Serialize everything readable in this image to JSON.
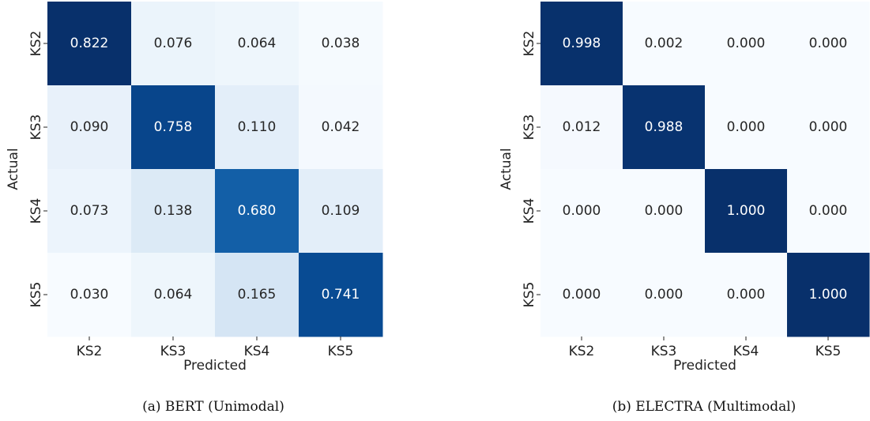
{
  "chart_data": [
    {
      "type": "heatmap",
      "caption": "(a) BERT (Unimodal)",
      "xlabel": "Predicted",
      "ylabel": "Actual",
      "x_categories": [
        "KS2",
        "KS3",
        "KS4",
        "KS5"
      ],
      "y_categories": [
        "KS2",
        "KS3",
        "KS4",
        "KS5"
      ],
      "values": [
        [
          0.822,
          0.076,
          0.064,
          0.038
        ],
        [
          0.09,
          0.758,
          0.11,
          0.042
        ],
        [
          0.073,
          0.138,
          0.68,
          0.109
        ],
        [
          0.03,
          0.064,
          0.165,
          0.741
        ]
      ],
      "value_labels": [
        [
          "0.822",
          "0.076",
          "0.064",
          "0.038"
        ],
        [
          "0.090",
          "0.758",
          "0.110",
          "0.042"
        ],
        [
          "0.073",
          "0.138",
          "0.680",
          "0.109"
        ],
        [
          "0.030",
          "0.064",
          "0.165",
          "0.741"
        ]
      ],
      "colormap": "Blues",
      "vmin": 0.03,
      "vmax": 0.822,
      "colorbar": false
    },
    {
      "type": "heatmap",
      "caption": "(b) ELECTRA (Multimodal)",
      "xlabel": "Predicted",
      "ylabel": "Actual",
      "x_categories": [
        "KS2",
        "KS3",
        "KS4",
        "KS5"
      ],
      "y_categories": [
        "KS2",
        "KS3",
        "KS4",
        "KS5"
      ],
      "values": [
        [
          0.998,
          0.002,
          0.0,
          0.0
        ],
        [
          0.012,
          0.988,
          0.0,
          0.0
        ],
        [
          0.0,
          0.0,
          1.0,
          0.0
        ],
        [
          0.0,
          0.0,
          0.0,
          1.0
        ]
      ],
      "value_labels": [
        [
          "0.998",
          "0.002",
          "0.000",
          "0.000"
        ],
        [
          "0.012",
          "0.988",
          "0.000",
          "0.000"
        ],
        [
          "0.000",
          "0.000",
          "1.000",
          "0.000"
        ],
        [
          "0.000",
          "0.000",
          "0.000",
          "1.000"
        ]
      ],
      "colormap": "Blues",
      "vmin": 0.0,
      "vmax": 1.0,
      "colorbar": false
    }
  ]
}
